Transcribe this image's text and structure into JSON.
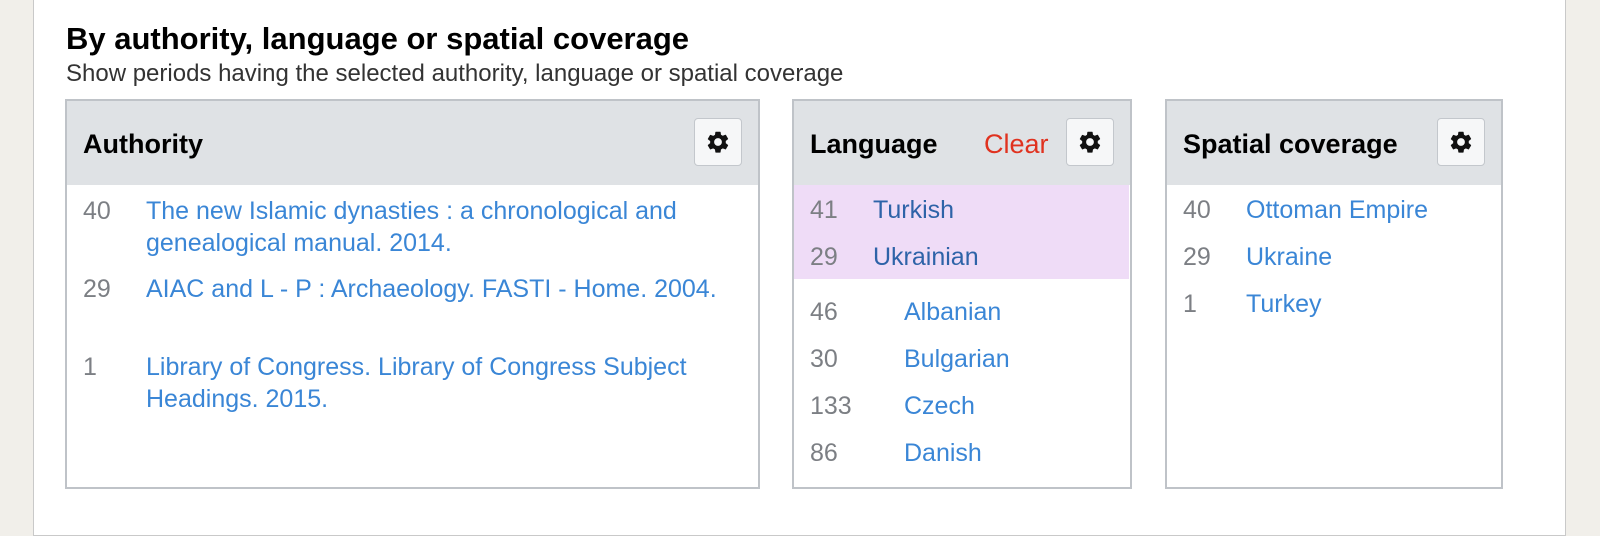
{
  "section": {
    "heading": "By authority, language or spatial coverage",
    "subheading": "Show periods having the selected authority, language or spatial coverage"
  },
  "authority": {
    "title": "Authority",
    "items": [
      {
        "count": "40",
        "label": "The new Islamic dynasties : a chronological and genealogical manual. 2014."
      },
      {
        "count": "29",
        "label": "AIAC and L - P : Archaeology. FASTI - Home. 2004."
      },
      {
        "count": "1",
        "label": "Library of Congress. Library of Congress Subject Headings. 2015."
      }
    ]
  },
  "language": {
    "title": "Language",
    "clear_label": "Clear",
    "selected": [
      {
        "count": "41",
        "label": "Turkish"
      },
      {
        "count": "29",
        "label": "Ukrainian"
      }
    ],
    "items": [
      {
        "count": "46",
        "label": "Albanian"
      },
      {
        "count": "30",
        "label": "Bulgarian"
      },
      {
        "count": "133",
        "label": "Czech"
      },
      {
        "count": "86",
        "label": "Danish"
      }
    ]
  },
  "spatial": {
    "title": "Spatial coverage",
    "items": [
      {
        "count": "40",
        "label": "Ottoman Empire"
      },
      {
        "count": "29",
        "label": "Ukraine"
      },
      {
        "count": "1",
        "label": "Turkey"
      }
    ]
  },
  "icons": {
    "settings": "gear-icon"
  },
  "colors": {
    "link": "#3a86d6",
    "selected_link": "#2e63a8",
    "selected_bg": "#efdcf7",
    "clear": "#e0321f",
    "header_bg": "#dfe2e5"
  }
}
